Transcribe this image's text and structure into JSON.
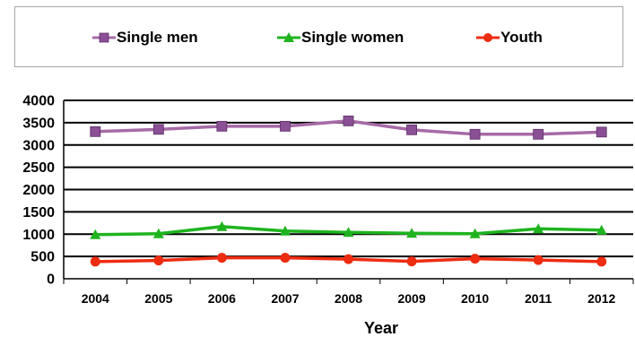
{
  "chart_data": {
    "type": "line",
    "categories": [
      "2004",
      "2005",
      "2006",
      "2007",
      "2008",
      "2009",
      "2010",
      "2011",
      "2012"
    ],
    "series": [
      {
        "name": "Single men",
        "values": [
          3300,
          3350,
          3420,
          3420,
          3540,
          3340,
          3240,
          3240,
          3290
        ],
        "color": "#8b4f96",
        "line_color": "#a76aa6",
        "marker": "square"
      },
      {
        "name": "Single women",
        "values": [
          990,
          1010,
          1170,
          1070,
          1040,
          1020,
          1010,
          1120,
          1090
        ],
        "color": "#1fb41f",
        "line_color": "#1fb41f",
        "marker": "triangle"
      },
      {
        "name": "Youth",
        "values": [
          385,
          410,
          470,
          470,
          440,
          390,
          450,
          420,
          385
        ],
        "color": "#ee2c11",
        "line_color": "#ee2c11",
        "marker": "circle"
      }
    ],
    "xlabel": "Year",
    "ylabel": "",
    "ylim": [
      0,
      4000
    ],
    "yticks": [
      0,
      500,
      1000,
      1500,
      2000,
      2500,
      3000,
      3500,
      4000
    ],
    "grid": true,
    "legend_position": "top"
  }
}
